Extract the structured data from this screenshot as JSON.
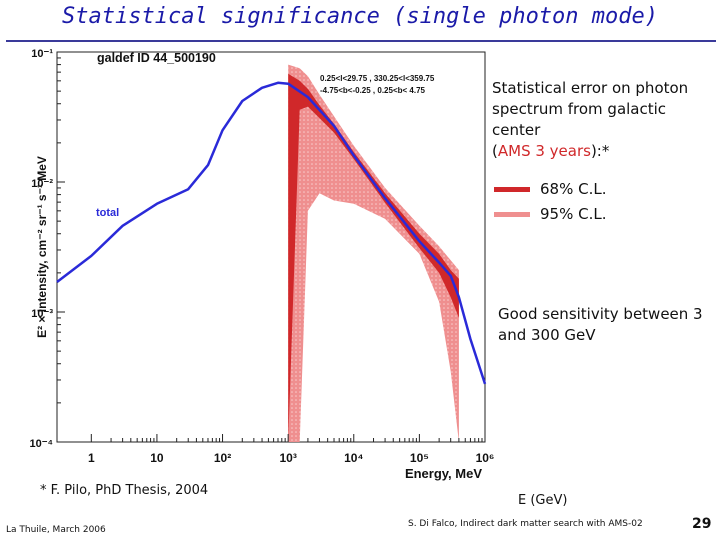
{
  "slide": {
    "title": "Statistical significance (single photon mode)",
    "side_text_1": "Statistical error on photon spectrum from galactic center",
    "side_text_2_prefix": "(",
    "side_text_2_highlight": "AMS 3 years",
    "side_text_2_suffix": "):*",
    "legend": [
      {
        "label": "68% C.L.",
        "color": "#d0282a"
      },
      {
        "label": "95% C.L.",
        "color": "#ef8f8f"
      }
    ],
    "sensitivity_text": "Good sensitivity between 3 and 300 GeV",
    "axis_note": "E (GeV)",
    "footnote": "* F. Pilo, PhD Thesis, 2004",
    "footer_left": "La Thuile, March 2006",
    "footer_center": "S. Di Falco, Indirect dark matter search with AMS-02",
    "page_number": "29",
    "accent_color": "#d0282a",
    "title_color": "#1a1aa8"
  },
  "chart_data": {
    "type": "line",
    "title": "galdef ID 44_500190",
    "annotation_line_1": "0.25<l<29.75 , 330.25<l<359.75",
    "annotation_line_2": "-4.75<b<-0.25 , 0.25<b< 4.75",
    "xlabel": "Energy, MeV",
    "ylabel": "E² × Intensity, cm⁻² sr⁻¹ s⁻¹ MeV",
    "xscale": "log",
    "yscale": "log",
    "xlim": [
      0.3,
      1000000
    ],
    "ylim": [
      0.0001,
      0.1
    ],
    "x_ticks": [
      {
        "value": 1,
        "label": "1"
      },
      {
        "value": 10,
        "label": "10"
      },
      {
        "value": 100,
        "label": "10²"
      },
      {
        "value": 1000,
        "label": "10³"
      },
      {
        "value": 10000,
        "label": "10⁴"
      },
      {
        "value": 100000,
        "label": "10⁵"
      },
      {
        "value": 1000000,
        "label": "10⁶"
      }
    ],
    "y_ticks": [
      {
        "value": 0.0001,
        "label": "10⁻⁴"
      },
      {
        "value": 0.001,
        "label": "10⁻³"
      },
      {
        "value": 0.01,
        "label": "10⁻²"
      },
      {
        "value": 0.1,
        "label": "10⁻¹"
      }
    ],
    "series": [
      {
        "name": "total",
        "color": "#2a2ad8",
        "x": [
          0.3,
          1,
          3,
          10,
          30,
          60,
          100,
          200,
          400,
          700,
          1000,
          2000,
          5000,
          10000,
          30000,
          100000,
          200000,
          300000,
          400000,
          600000,
          1000000
        ],
        "y": [
          0.0017,
          0.0027,
          0.0046,
          0.0068,
          0.0088,
          0.0135,
          0.025,
          0.042,
          0.053,
          0.058,
          0.057,
          0.045,
          0.027,
          0.016,
          0.0075,
          0.0035,
          0.0024,
          0.0019,
          0.0013,
          0.00062,
          0.00028
        ]
      }
    ],
    "bands": [
      {
        "name": "95% C.L.",
        "color": "#ef8f8f",
        "x": [
          1000,
          1500,
          2000,
          3000,
          5000,
          10000,
          30000,
          100000,
          200000,
          300000,
          400000
        ],
        "upper": [
          0.08,
          0.075,
          0.065,
          0.047,
          0.032,
          0.019,
          0.009,
          0.0046,
          0.0032,
          0.0025,
          0.0021
        ],
        "lower": [
          0.0001,
          0.0001,
          0.006,
          0.0082,
          0.0072,
          0.0068,
          0.0052,
          0.0028,
          0.0012,
          0.00035,
          0.0001
        ]
      },
      {
        "name": "68% C.L.",
        "color": "#d0282a",
        "x": [
          1000,
          1500,
          2000,
          3000,
          5000,
          10000,
          30000,
          100000,
          200000,
          300000,
          400000
        ],
        "upper": [
          0.068,
          0.06,
          0.052,
          0.039,
          0.028,
          0.017,
          0.0082,
          0.004,
          0.0028,
          0.0021,
          0.0018
        ],
        "lower": [
          0.0001,
          0.036,
          0.038,
          0.031,
          0.024,
          0.015,
          0.0069,
          0.0031,
          0.002,
          0.0013,
          0.0009
        ]
      }
    ],
    "series_label": "total"
  }
}
